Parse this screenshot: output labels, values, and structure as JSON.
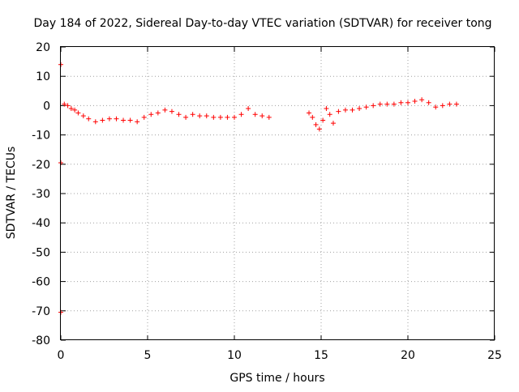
{
  "chart_data": {
    "type": "scatter",
    "title": "Day 184 of 2022, Sidereal Day-to-day VTEC variation (SDTVAR) for receiver tong",
    "xlabel": "GPS time / hours",
    "ylabel": "SDTVAR / TECUs",
    "xlim": [
      0,
      25
    ],
    "ylim": [
      -80,
      20
    ],
    "xticks": [
      0,
      5,
      10,
      15,
      20,
      25
    ],
    "yticks": [
      20,
      10,
      0,
      -10,
      -20,
      -30,
      -40,
      -50,
      -60,
      -70,
      -80
    ],
    "grid": true,
    "legend": "none",
    "marker": "+",
    "colors": {
      "series": "#ff0000",
      "grid": "#a0a0a0",
      "axis": "#000000"
    },
    "series": [
      {
        "name": "SDTVAR",
        "x": [
          0.0,
          0.0,
          0.0,
          0.2,
          0.4,
          0.6,
          0.8,
          1.0,
          1.3,
          1.6,
          2.0,
          2.4,
          2.8,
          3.2,
          3.6,
          4.0,
          4.4,
          4.8,
          5.2,
          5.6,
          6.0,
          6.4,
          6.8,
          7.2,
          7.6,
          8.0,
          8.4,
          8.8,
          9.2,
          9.6,
          10.0,
          10.4,
          10.8,
          11.2,
          11.6,
          12.0,
          14.3,
          14.5,
          14.7,
          14.9,
          15.1,
          15.3,
          15.5,
          15.7,
          16.0,
          16.4,
          16.8,
          17.2,
          17.6,
          18.0,
          18.4,
          18.8,
          19.2,
          19.6,
          20.0,
          20.4,
          20.8,
          21.2,
          21.6,
          22.0,
          22.4,
          22.8
        ],
        "y": [
          14,
          -19.5,
          -70.5,
          0.5,
          0,
          -1,
          -1.5,
          -2.5,
          -3.5,
          -4.5,
          -5.5,
          -5,
          -4.5,
          -4.5,
          -5,
          -5,
          -5.5,
          -4,
          -3,
          -2.5,
          -1.5,
          -2,
          -3,
          -4,
          -3,
          -3.5,
          -3.5,
          -4,
          -4,
          -4,
          -4,
          -3,
          -1,
          -3,
          -3.5,
          -4,
          -2.5,
          -4,
          -6.5,
          -8,
          -5,
          -1,
          -3,
          -6,
          -2,
          -1.5,
          -1.5,
          -1,
          -0.5,
          0,
          0.5,
          0.5,
          0.5,
          1,
          1,
          1.5,
          2,
          1,
          -0.5,
          0,
          0.5,
          0.5
        ]
      }
    ]
  }
}
